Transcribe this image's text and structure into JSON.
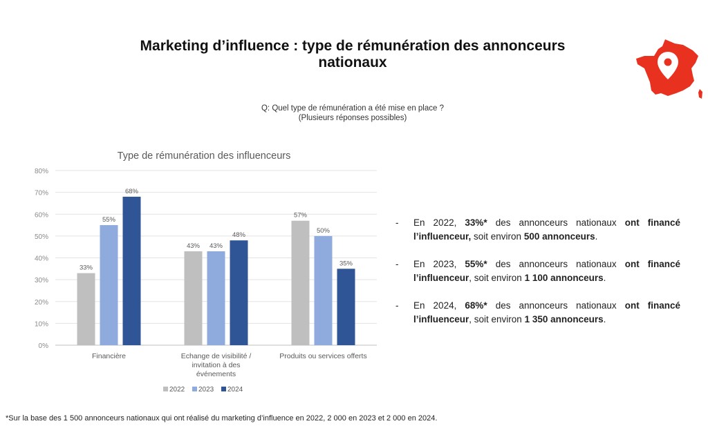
{
  "title_line1": "Marketing d’influence : type de rémunération des annonceurs",
  "title_line2": "nationaux",
  "question_line1": "Q: Quel type de rémunération a été mise en place ?",
  "question_line2": "(Plusieurs réponses possibles)",
  "map_icon": "france-map-location-pin-icon",
  "colors": {
    "c2022": "#BFBFBF",
    "c2023": "#8FAADC",
    "c2024": "#2F5597",
    "map": "#E8311F"
  },
  "bullets": [
    {
      "pre": "En 2022, ",
      "pct": "33%*",
      "mid": " des annonceurs nationaux ",
      "bold1": "ont financé l’influenceur,",
      "mid2": " soit environ ",
      "bold2": "500 annonceurs",
      "end": "."
    },
    {
      "pre": "En 2023, ",
      "pct": "55%*",
      "mid": " des annonceurs nationaux ",
      "bold1": "ont financé l’influenceur",
      "mid2": ", soit environ ",
      "bold2": "1 100 annonceurs",
      "end": "."
    },
    {
      "pre": "En 2024, ",
      "pct": "68%*",
      "mid": " des annonceurs nationaux ",
      "bold1": "ont financé l’influenceur",
      "mid2": ", soit environ ",
      "bold2": "1 350 annonceurs",
      "end": "."
    }
  ],
  "footnote": "*Sur la base des 1 500 annonceurs nationaux qui ont réalisé du marketing d’influence en 2022, 2 000 en 2023 et 2 000 en 2024.",
  "chart_data": {
    "type": "bar",
    "title": "Type de rémunération des influenceurs",
    "categories": [
      [
        "Financière"
      ],
      [
        "Echange de visibilité /",
        "invitation à des",
        "événements"
      ],
      [
        "Produits ou services offerts"
      ]
    ],
    "series": [
      {
        "name": "2022",
        "values": [
          33,
          43,
          57
        ],
        "labels": [
          "33%",
          "43%",
          "57%"
        ]
      },
      {
        "name": "2023",
        "values": [
          55,
          43,
          50
        ],
        "labels": [
          "55%",
          "43%",
          "50%"
        ]
      },
      {
        "name": "2024",
        "values": [
          68,
          48,
          35
        ],
        "labels": [
          "68%",
          "48%",
          "35%"
        ]
      }
    ],
    "yticks": [
      "0%",
      "10%",
      "20%",
      "30%",
      "40%",
      "50%",
      "60%",
      "70%",
      "80%"
    ],
    "ylim": [
      0,
      80
    ],
    "grid": true,
    "legend": "bottom"
  }
}
